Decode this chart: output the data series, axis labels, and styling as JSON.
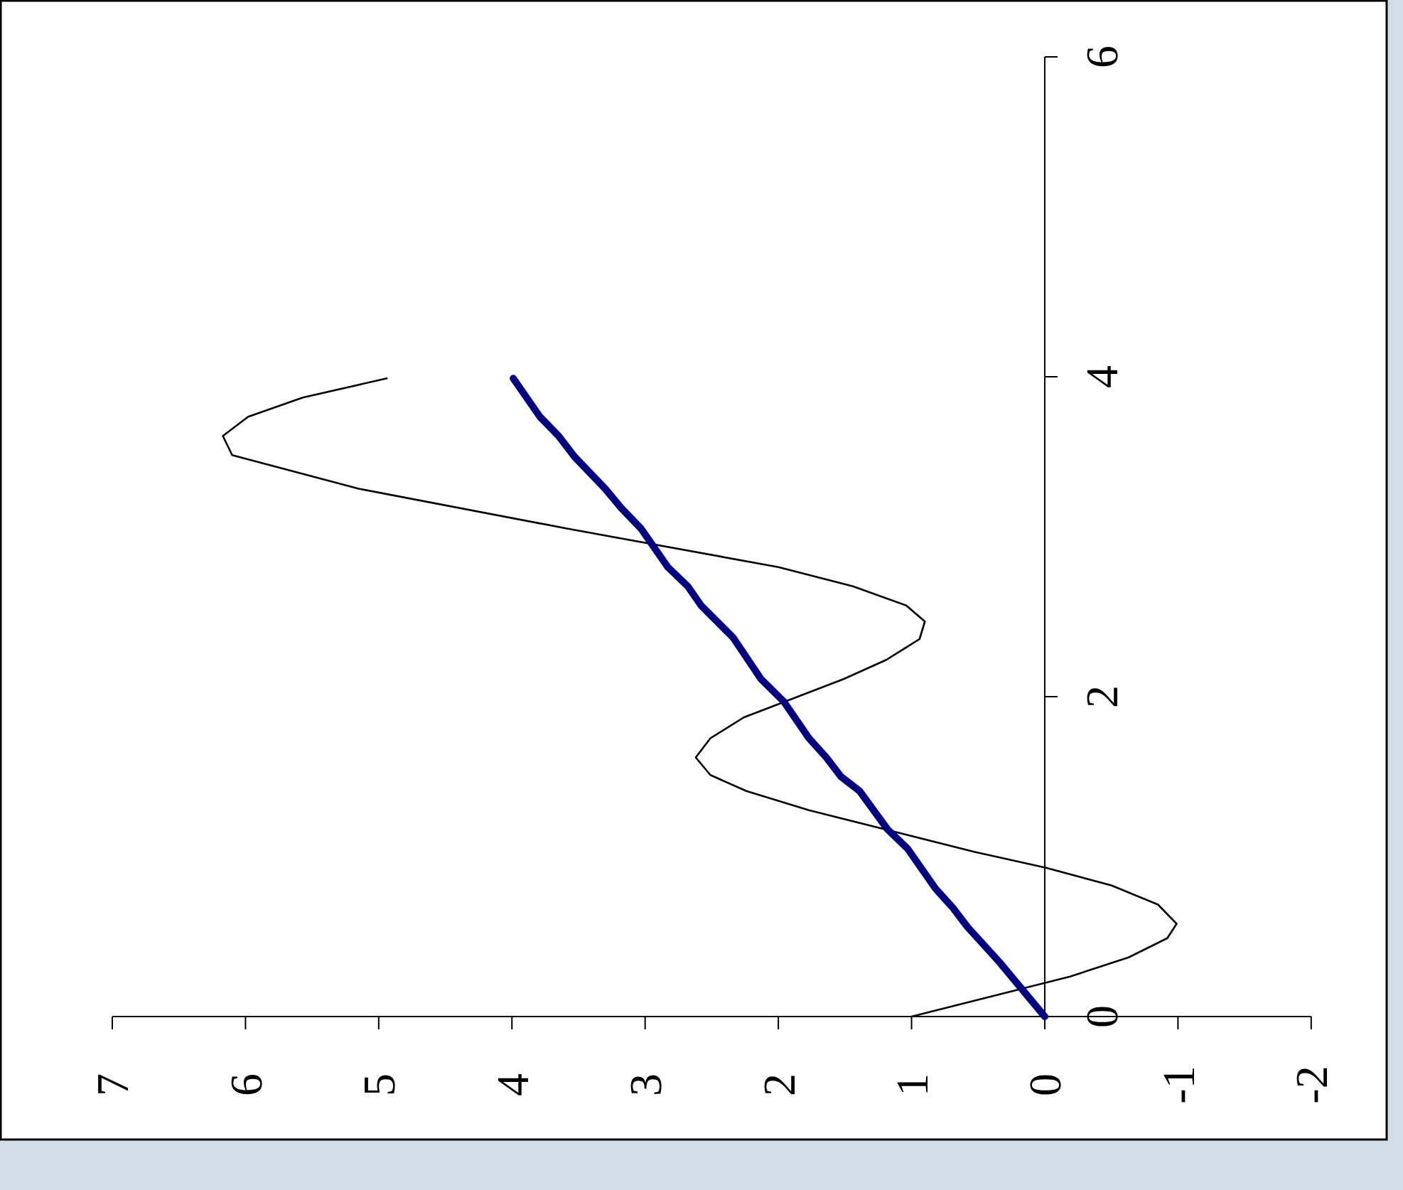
{
  "chart_data": {
    "type": "line",
    "xlim": [
      7,
      -2
    ],
    "xticks": [
      7,
      6,
      5,
      4,
      3,
      2,
      1,
      0,
      -1,
      -2
    ],
    "ylim": [
      0,
      6
    ],
    "yticks": [
      0,
      2,
      4,
      6
    ],
    "grid": false,
    "marker": "none",
    "series": [
      {
        "color": "#000000",
        "values": [
          0,
          0.25,
          0.37,
          0.49,
          0.58,
          0.7,
          0.82,
          0.93,
          1.03,
          1.29,
          1.41,
          1.51,
          1.62,
          1.74,
          1.87,
          2.11,
          2.23,
          2.36,
          2.47,
          2.57,
          2.69,
          2.81,
          3.05,
          3.3,
          3.51,
          3.63,
          3.75,
          3.87,
          3.99
        ],
        "x": [
          1,
          -0.19,
          -0.63,
          -0.92,
          -0.99,
          -0.85,
          -0.5,
          -0.01,
          0.53,
          1.77,
          2.24,
          2.51,
          2.62,
          2.51,
          2.26,
          1.51,
          1.19,
          0.94,
          0.9,
          1.04,
          1.44,
          2,
          3.58,
          5.15,
          6.1,
          6.17,
          5.98,
          5.57,
          4.94
        ]
      },
      {
        "color": "#000080",
        "values": [
          0,
          0.06,
          0.22,
          0.34,
          0.56,
          0.68,
          0.8,
          1.05,
          1.17,
          1.41,
          1.5,
          1.62,
          1.74,
          1.97,
          2.11,
          2.37,
          2.57,
          2.69,
          2.81,
          3.05,
          3.18,
          3.3,
          3.5,
          3.63,
          3.75,
          3.99
        ],
        "x": [
          0,
          0.06,
          0.22,
          0.34,
          0.58,
          0.69,
          0.82,
          1.03,
          1.18,
          1.39,
          1.53,
          1.64,
          1.77,
          1.96,
          2.13,
          2.34,
          2.58,
          2.68,
          2.83,
          3.03,
          3.18,
          3.3,
          3.53,
          3.65,
          3.79,
          3.99
        ]
      }
    ]
  }
}
